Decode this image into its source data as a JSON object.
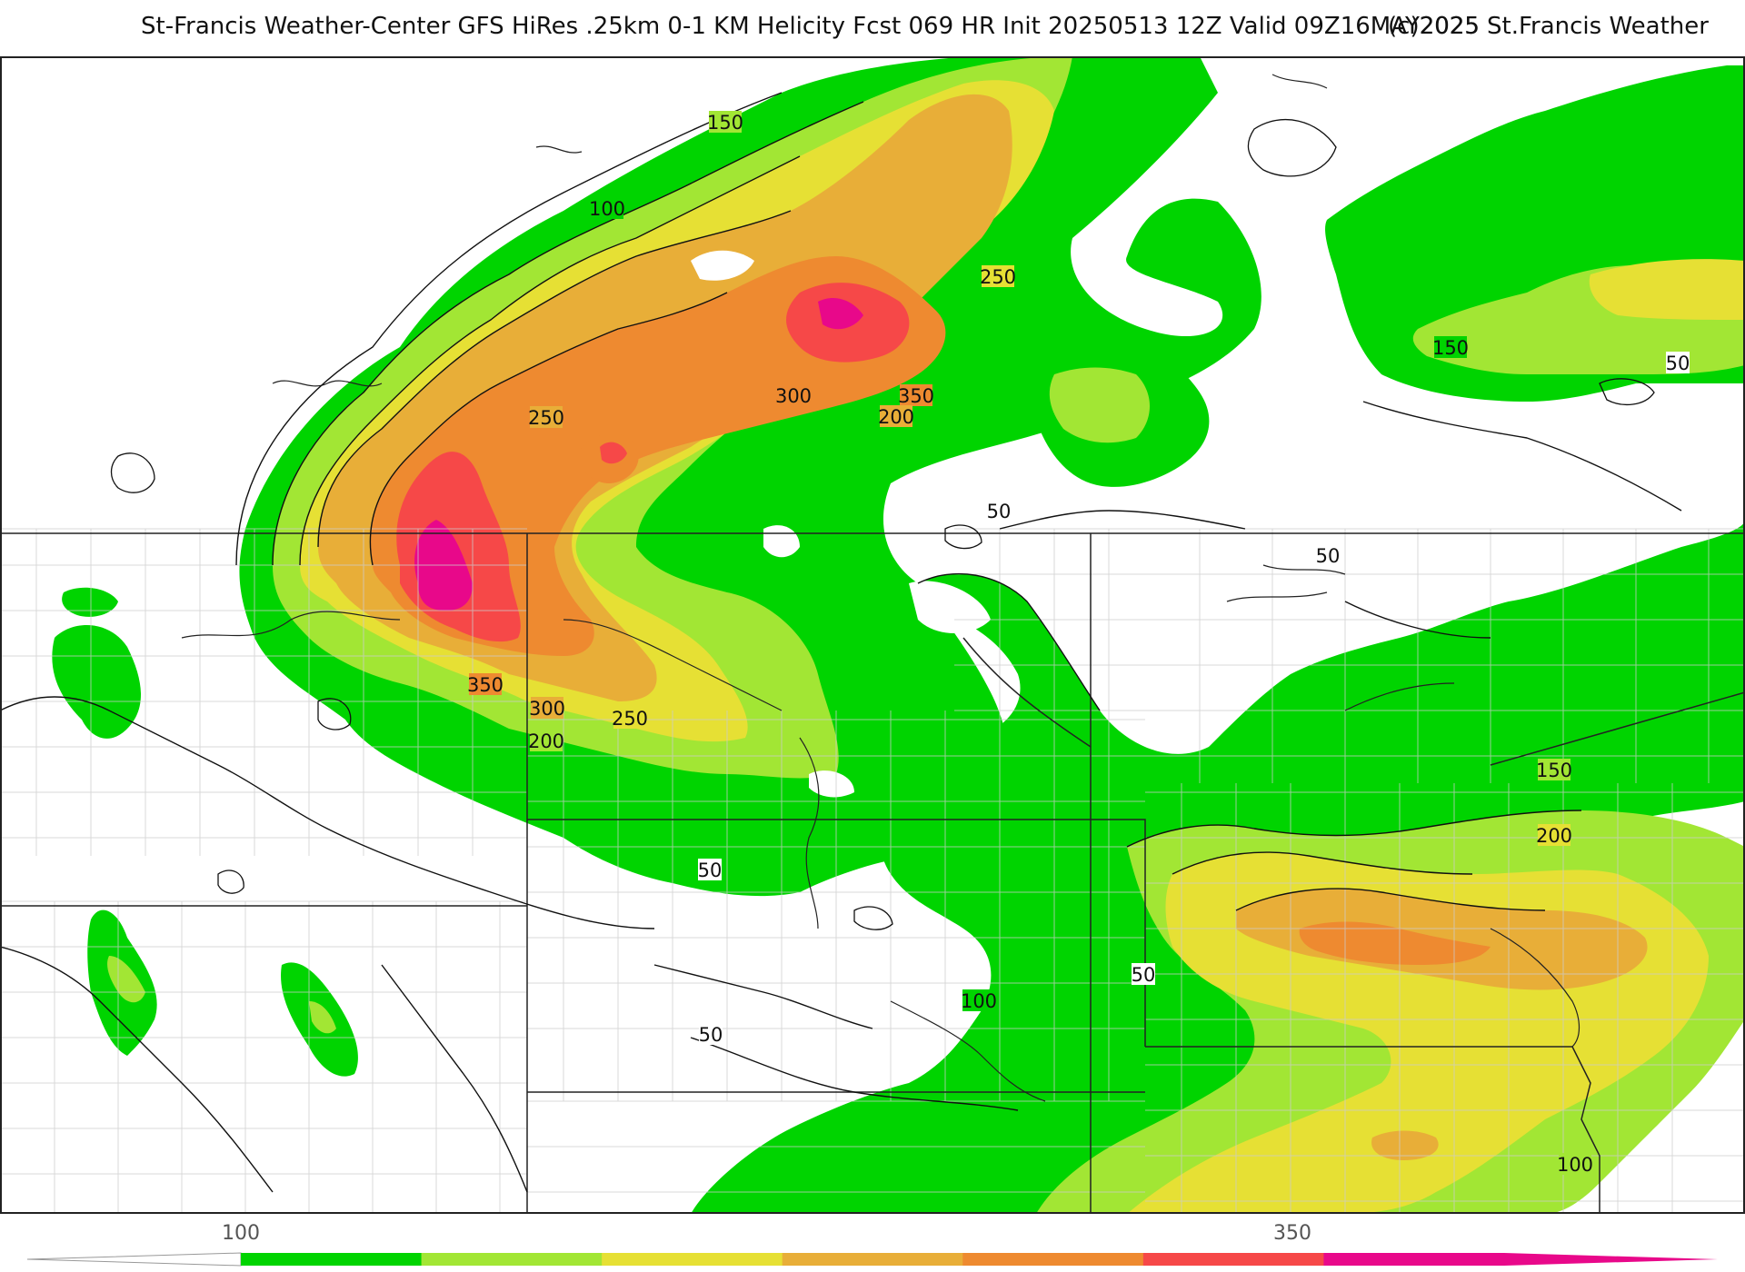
{
  "title": {
    "main": "St-Francis Weather-Center GFS HiRes .25km 0-1 KM Helicity Fcst 069 HR Init 20250513 12Z  Valid 09Z16MAY2025",
    "copyright": "(c)2025 St.Francis Weather"
  },
  "palette": {
    "c50": "#ffffff",
    "c100": "#00d400",
    "c150": "#a2e634",
    "c200": "#e6e034",
    "c250": "#e8ae38",
    "c300": "#ee8a30",
    "c350": "#f64848",
    "c400": "#e8088a",
    "line": "#111111",
    "border": "#222222",
    "county": "#bbbbbb"
  },
  "contour_labels": {
    "l150a": "150",
    "l100a": "100",
    "l250a": "250",
    "l250b": "250",
    "l300a": "300",
    "l350a": "350",
    "l200a": "200",
    "l50a": "50",
    "l150b": "150",
    "l50b": "50",
    "l50c": "50",
    "l350b": "350",
    "l300b": "300",
    "l250c": "250",
    "l200b": "200",
    "l150c": "150",
    "l200c": "200",
    "l50d": "50",
    "l50e": "50",
    "l100b": "100",
    "l50f": "50",
    "l100c": "100"
  },
  "colorbar": {
    "labels": [
      "100",
      "350"
    ],
    "segments": [
      "#00d400",
      "#a2e634",
      "#e6e034",
      "#e8ae38",
      "#ee8a30",
      "#f64848",
      "#e8088a"
    ]
  }
}
